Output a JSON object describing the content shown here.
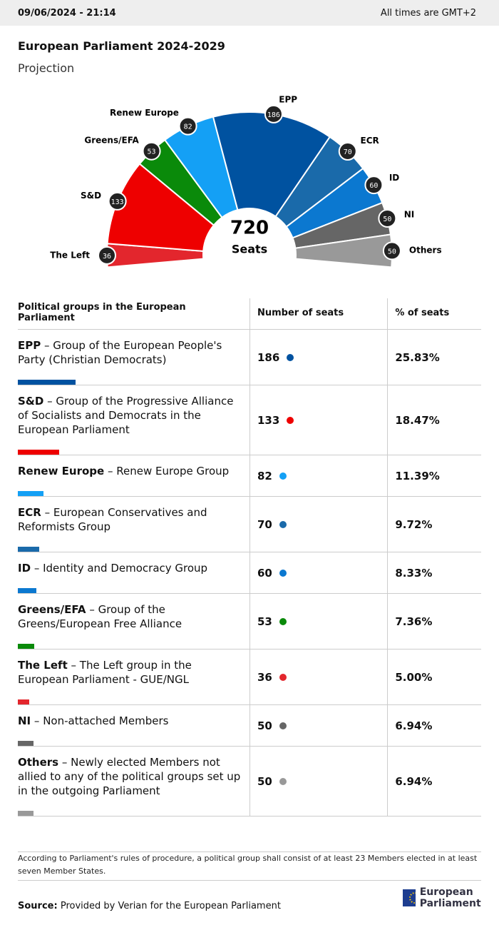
{
  "header": {
    "datetime": "09/06/2024 - 21:14",
    "timezone": "All times are GMT+2"
  },
  "chart_data": {
    "type": "parliament",
    "title": "European Parliament 2024-2029",
    "subtitle": "Projection",
    "total": 720,
    "total_label": "Seats",
    "categories": [
      "The Left",
      "S&D",
      "Greens/EFA",
      "Renew Europe",
      "EPP",
      "ECR",
      "ID",
      "NI",
      "Others"
    ],
    "values": [
      36,
      133,
      53,
      82,
      186,
      70,
      60,
      50,
      50
    ],
    "colors": [
      "#e3262d",
      "#ee0000",
      "#0a8a0a",
      "#14a0f5",
      "#0052a0",
      "#1a6aaa",
      "#0b78d0",
      "#666666",
      "#999999"
    ]
  },
  "table": {
    "columns": [
      "Political groups in the European Parliament",
      "Number of seats",
      "% of seats"
    ],
    "rows": [
      {
        "abbr": "EPP",
        "name": "– Group of the European People's Party (Christian Democrats)",
        "seats": 186,
        "percent": "25.83%",
        "color": "#0052a0"
      },
      {
        "abbr": "S&D",
        "name": "– Group of the Progressive Alliance of Socialists and Democrats in the European Parliament",
        "seats": 133,
        "percent": "18.47%",
        "color": "#ee0000"
      },
      {
        "abbr": "Renew Europe",
        "name": "– Renew Europe Group",
        "seats": 82,
        "percent": "11.39%",
        "color": "#14a0f5"
      },
      {
        "abbr": "ECR",
        "name": "– European Conservatives and Reformists Group",
        "seats": 70,
        "percent": "9.72%",
        "color": "#1a6aaa"
      },
      {
        "abbr": "ID",
        "name": "– Identity and Democracy Group",
        "seats": 60,
        "percent": "8.33%",
        "color": "#0b78d0"
      },
      {
        "abbr": "Greens/EFA",
        "name": "– Group of the Greens/European Free Alliance",
        "seats": 53,
        "percent": "7.36%",
        "color": "#0a8a0a"
      },
      {
        "abbr": "The Left",
        "name": "– The Left group in the European Parliament - GUE/NGL",
        "seats": 36,
        "percent": "5.00%",
        "color": "#e3262d"
      },
      {
        "abbr": "NI",
        "name": "– Non-attached Members",
        "seats": 50,
        "percent": "6.94%",
        "color": "#666666"
      },
      {
        "abbr": "Others",
        "name": "– Newly elected Members not allied to any of the political groups set up in the outgoing Parliament",
        "seats": 50,
        "percent": "6.94%",
        "color": "#999999"
      }
    ]
  },
  "footer": {
    "note": "According to Parliament's rules of procedure, a political group shall consist of at least 23 Members elected in at least seven Member States.",
    "source_label": "Source:",
    "source": "Provided by Verian for the European Parliament",
    "logo": "European Parliament"
  }
}
